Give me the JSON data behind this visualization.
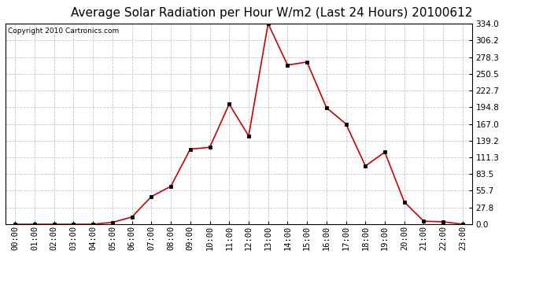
{
  "title": "Average Solar Radiation per Hour W/m2 (Last 24 Hours) 20100612",
  "copyright": "Copyright 2010 Cartronics.com",
  "hours": [
    "00:00",
    "01:00",
    "02:00",
    "03:00",
    "04:00",
    "05:00",
    "06:00",
    "07:00",
    "08:00",
    "09:00",
    "10:00",
    "11:00",
    "12:00",
    "13:00",
    "14:00",
    "15:00",
    "16:00",
    "17:00",
    "18:00",
    "19:00",
    "20:00",
    "21:00",
    "22:00",
    "23:00"
  ],
  "values": [
    0.0,
    0.0,
    0.0,
    0.0,
    0.0,
    3.0,
    12.0,
    46.0,
    63.0,
    125.0,
    128.0,
    200.0,
    147.0,
    334.0,
    265.0,
    270.0,
    194.0,
    167.0,
    97.0,
    120.0,
    37.0,
    5.0,
    4.0,
    0.0
  ],
  "line_color": "#cc0000",
  "marker_color": "#000000",
  "background_color": "#ffffff",
  "grid_color": "#c8c8c8",
  "yticks": [
    0.0,
    27.8,
    55.7,
    83.5,
    111.3,
    139.2,
    167.0,
    194.8,
    222.7,
    250.5,
    278.3,
    306.2,
    334.0
  ],
  "ymax": 334.0,
  "title_fontsize": 11,
  "copyright_fontsize": 6.5,
  "tick_fontsize": 7.5,
  "ylabel_fontsize": 7.5
}
